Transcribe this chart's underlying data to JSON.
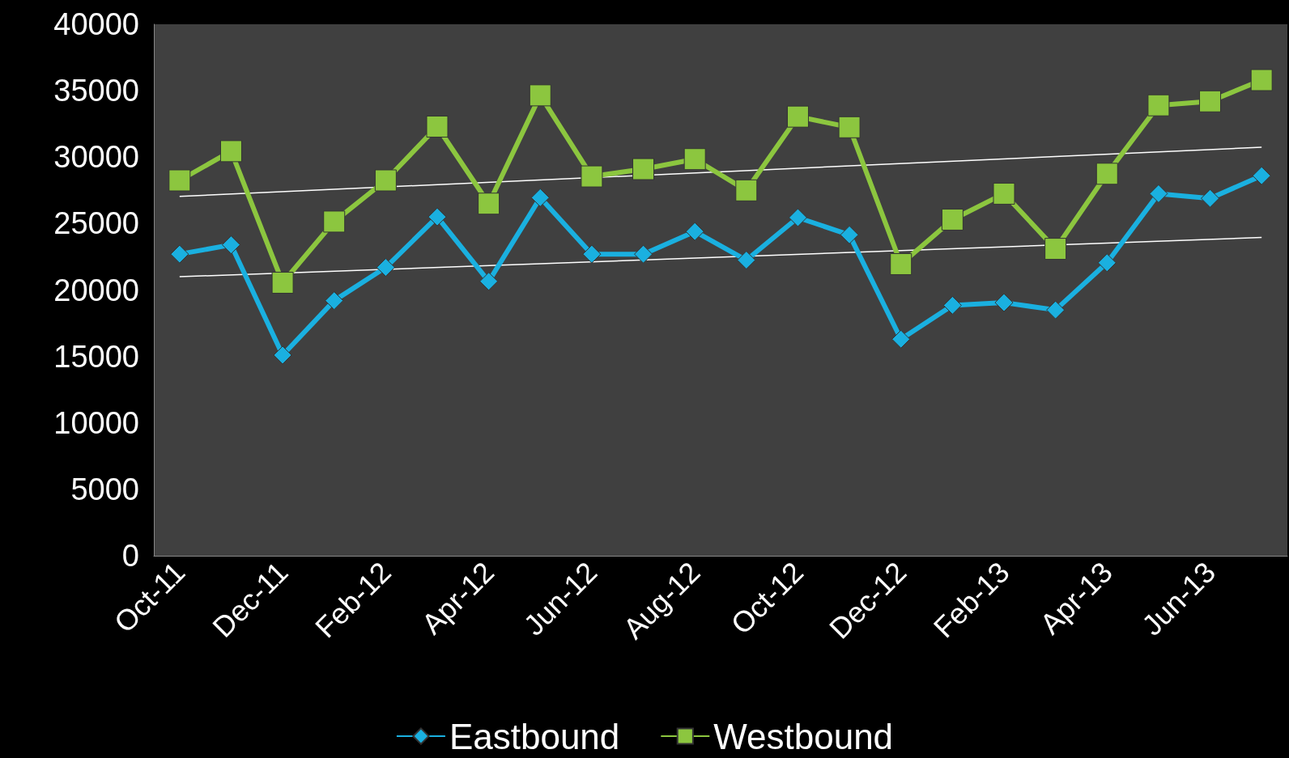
{
  "chart_data": {
    "type": "line",
    "categories": [
      "Oct-11",
      null,
      "Dec-11",
      null,
      "Feb-12",
      null,
      "Apr-12",
      null,
      "Jun-12",
      null,
      "Aug-12",
      null,
      "Oct-12",
      null,
      "Dec-12",
      null,
      "Feb-13",
      null,
      "Apr-13",
      null,
      "Jun-13",
      null
    ],
    "series": [
      {
        "name": "Eastbound",
        "color": "#1ab0e0",
        "marker": "diamond",
        "values": [
          22700,
          23400,
          15100,
          19200,
          21700,
          25500,
          20650,
          26950,
          22700,
          22700,
          24400,
          22250,
          25450,
          24150,
          16300,
          18850,
          19050,
          18500,
          22050,
          27250,
          26900,
          28600
        ]
      },
      {
        "name": "Westbound",
        "color": "#8cc63f",
        "marker": "square",
        "values": [
          28250,
          30450,
          20550,
          25150,
          28250,
          32300,
          26500,
          34650,
          28550,
          29100,
          29850,
          27500,
          33050,
          32250,
          21950,
          25300,
          27250,
          23100,
          28750,
          33900,
          34200,
          35800
        ]
      },
      {
        "color": "#ffffff",
        "marker": "none",
        "values": [
          21000,
          null,
          null,
          null,
          null,
          null,
          null,
          null,
          null,
          null,
          null,
          null,
          null,
          null,
          null,
          null,
          null,
          null,
          null,
          null,
          null,
          23950
        ]
      },
      {
        "color": "#ffffff",
        "marker": "none",
        "values": [
          27050,
          null,
          null,
          null,
          null,
          null,
          null,
          null,
          null,
          null,
          null,
          null,
          null,
          null,
          null,
          null,
          null,
          null,
          null,
          null,
          null,
          30750
        ]
      }
    ],
    "ylim": [
      0,
      40000
    ],
    "yticks": [
      0,
      5000,
      10000,
      15000,
      20000,
      25000,
      30000,
      35000,
      40000
    ],
    "grid": false,
    "legend": "bottom",
    "line_style": "solid"
  }
}
